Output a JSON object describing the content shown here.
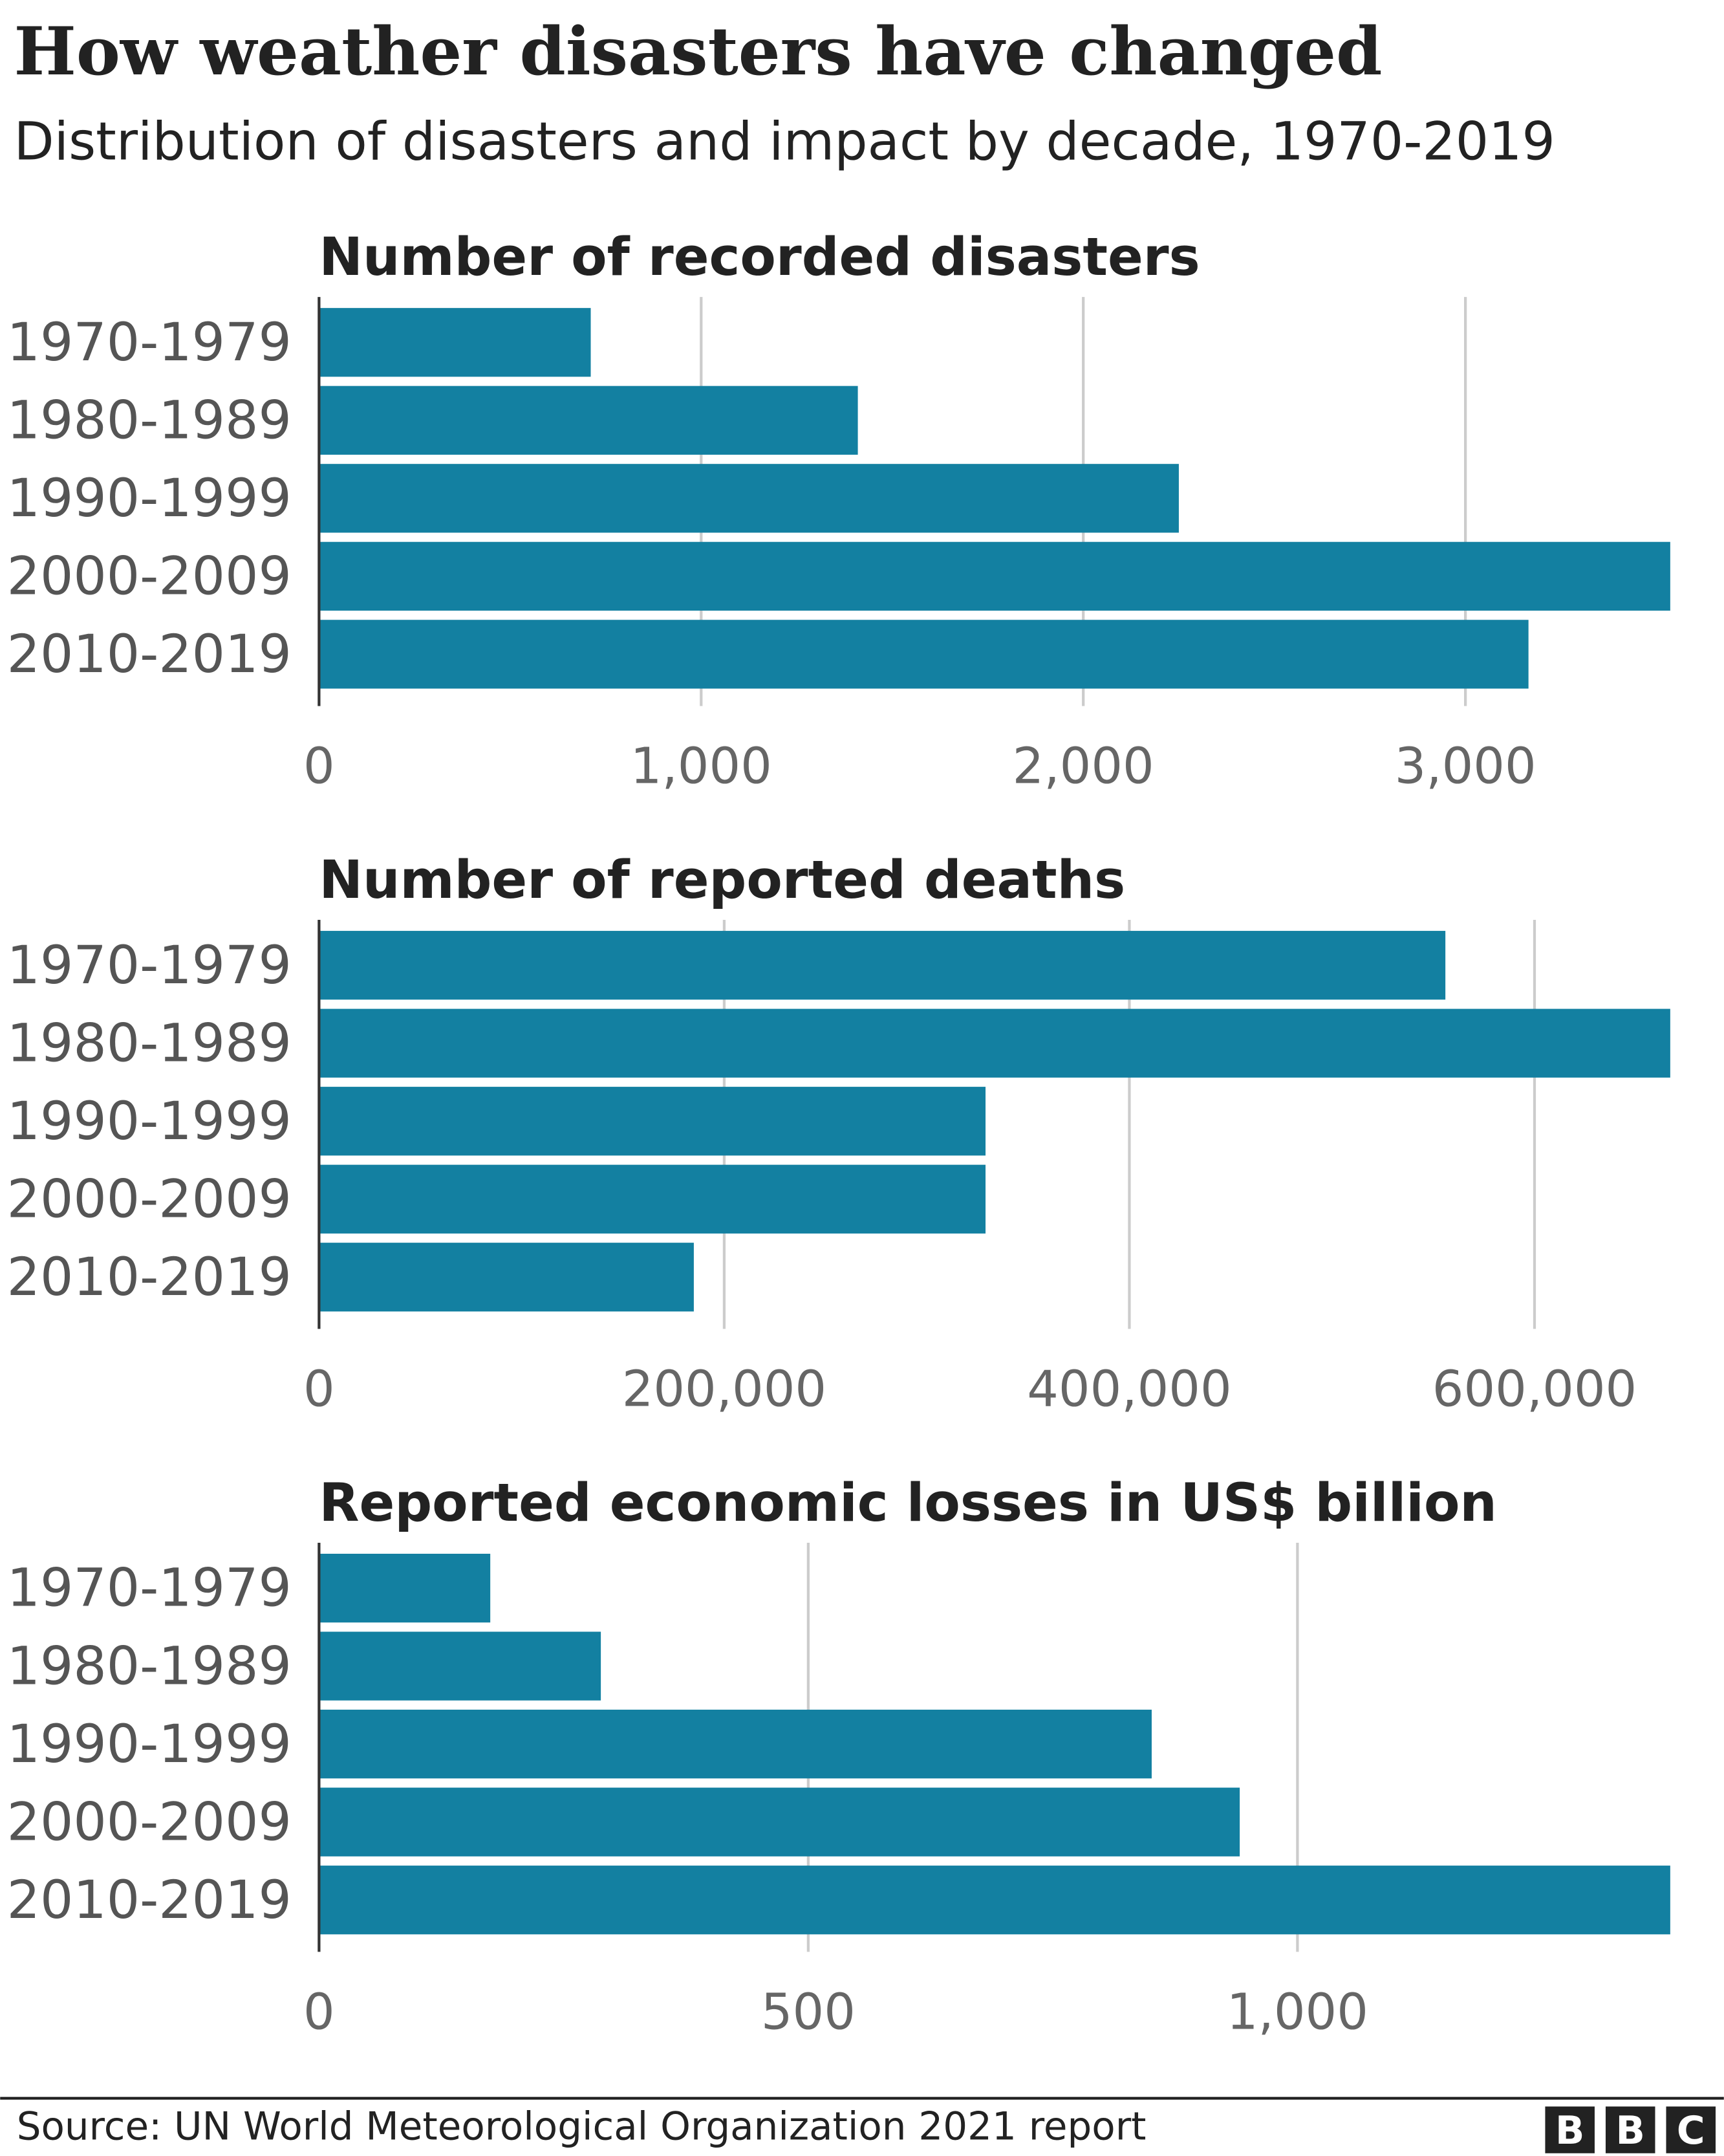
{
  "title": "How weather disasters have changed",
  "subtitle": "Distribution of disasters and impact by decade, 1970-2019",
  "source": "Source: UN World Meteorological Organization 2021 report",
  "logo": [
    "B",
    "B",
    "C"
  ],
  "chart_data": [
    {
      "type": "bar",
      "orientation": "horizontal",
      "title": "Number of recorded disasters",
      "categories": [
        "1970-1979",
        "1980-1989",
        "1990-1999",
        "2000-2009",
        "2010-2019"
      ],
      "values": [
        711,
        1410,
        2250,
        3536,
        3165
      ],
      "color": "#1380a1",
      "xlim": [
        0,
        3536
      ],
      "xticks": [
        0,
        {
          "value": 1000,
          "label": "1,000"
        },
        {
          "value": 2000,
          "label": "2,000"
        },
        {
          "value": 3000,
          "label": "3,000"
        }
      ],
      "grid": true
    },
    {
      "type": "bar",
      "orientation": "horizontal",
      "title": "Number of reported deaths",
      "categories": [
        "1970-1979",
        "1980-1989",
        "1990-1999",
        "2000-2009",
        "2010-2019"
      ],
      "values": [
        556000,
        667000,
        329000,
        329000,
        185000
      ],
      "color": "#1380a1",
      "xlim": [
        0,
        667000
      ],
      "xticks": [
        0,
        {
          "value": 200000,
          "label": "200,000"
        },
        {
          "value": 400000,
          "label": "400,000"
        },
        {
          "value": 600000,
          "label": "600,000"
        }
      ],
      "grid": true
    },
    {
      "type": "bar",
      "orientation": "horizontal",
      "title": "Reported economic losses in US$ billion",
      "categories": [
        "1970-1979",
        "1980-1989",
        "1990-1999",
        "2000-2009",
        "2010-2019"
      ],
      "values": [
        175,
        288,
        851,
        941,
        1381
      ],
      "color": "#1380a1",
      "xlim": [
        0,
        1381
      ],
      "xticks": [
        0,
        500,
        {
          "value": 1000,
          "label": "1,000"
        }
      ],
      "grid": true
    }
  ]
}
